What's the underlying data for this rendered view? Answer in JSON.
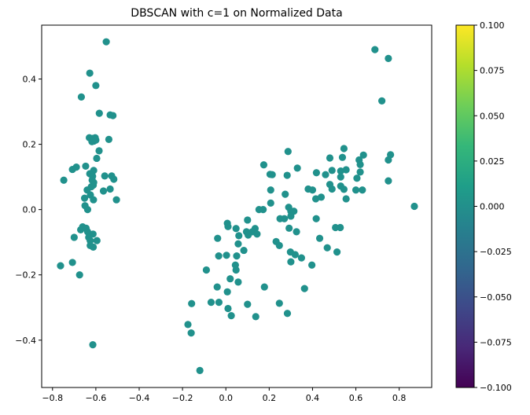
{
  "chart_data": {
    "type": "scatter",
    "title": "DBSCAN with c=1 on Normalized Data",
    "xlabel": "",
    "ylabel": "",
    "xlim": [
      -0.85,
      0.95
    ],
    "ylim": [
      -0.545,
      0.565
    ],
    "xticks": [
      -0.8,
      -0.6,
      -0.4,
      -0.2,
      0.0,
      0.2,
      0.4,
      0.6,
      0.8
    ],
    "yticks": [
      -0.4,
      -0.2,
      0.0,
      0.2,
      0.4
    ],
    "xtick_labels": [
      "−0.8",
      "−0.6",
      "−0.4",
      "−0.2",
      "0.0",
      "0.2",
      "0.4",
      "0.6",
      "0.8"
    ],
    "ytick_labels": [
      "−0.4",
      "−0.2",
      "0.0",
      "0.2",
      "0.4"
    ],
    "grid": false,
    "point_color": "#21918c",
    "colorbar": {
      "min": -0.1,
      "max": 0.1,
      "ticks": [
        -0.1,
        -0.075,
        -0.05,
        -0.025,
        0.0,
        0.025,
        0.05,
        0.075,
        0.1
      ],
      "tick_labels": [
        "−0.100",
        "−0.075",
        "−0.050",
        "−0.025",
        "0.000",
        "0.025",
        "0.050",
        "0.075",
        "0.100"
      ],
      "colormap": "viridis",
      "stops": [
        "#440154",
        "#482878",
        "#3e4989",
        "#31688e",
        "#26828e",
        "#1f9e89",
        "#35b779",
        "#6ece58",
        "#b5de2b",
        "#fde725"
      ]
    },
    "series": [
      {
        "points": [
          [
            -0.552,
            0.514
          ],
          [
            -0.628,
            0.418
          ],
          [
            -0.6,
            0.38
          ],
          [
            -0.667,
            0.345
          ],
          [
            -0.584,
            0.295
          ],
          [
            -0.534,
            0.29
          ],
          [
            -0.521,
            0.288
          ],
          [
            -0.63,
            0.22
          ],
          [
            -0.615,
            0.218
          ],
          [
            -0.603,
            0.22
          ],
          [
            -0.618,
            0.208
          ],
          [
            -0.54,
            0.215
          ],
          [
            -0.609,
            0.21
          ],
          [
            -0.6,
            0.213
          ],
          [
            -0.585,
            0.18
          ],
          [
            -0.596,
            0.157
          ],
          [
            -0.647,
            0.133
          ],
          [
            -0.61,
            0.12
          ],
          [
            -0.708,
            0.123
          ],
          [
            -0.69,
            0.13
          ],
          [
            -0.628,
            0.11
          ],
          [
            -0.615,
            0.102
          ],
          [
            -0.559,
            0.103
          ],
          [
            -0.527,
            0.103
          ],
          [
            -0.617,
            0.09
          ],
          [
            -0.748,
            0.09
          ],
          [
            -0.517,
            0.093
          ],
          [
            -0.61,
            0.083
          ],
          [
            -0.612,
            0.075
          ],
          [
            -0.621,
            0.07
          ],
          [
            -0.565,
            0.057
          ],
          [
            -0.534,
            0.063
          ],
          [
            -0.64,
            0.06
          ],
          [
            -0.625,
            0.045
          ],
          [
            -0.652,
            0.035
          ],
          [
            -0.611,
            0.03
          ],
          [
            -0.505,
            0.03
          ],
          [
            -0.65,
            0.012
          ],
          [
            -0.638,
            0.0
          ],
          [
            -0.661,
            -0.053
          ],
          [
            -0.67,
            -0.062
          ],
          [
            -0.645,
            -0.057
          ],
          [
            -0.638,
            -0.068
          ],
          [
            -0.633,
            -0.085
          ],
          [
            -0.613,
            -0.075
          ],
          [
            -0.7,
            -0.085
          ],
          [
            -0.626,
            -0.095
          ],
          [
            -0.595,
            -0.095
          ],
          [
            -0.626,
            -0.11
          ],
          [
            -0.612,
            -0.115
          ],
          [
            -0.708,
            -0.162
          ],
          [
            -0.763,
            -0.172
          ],
          [
            -0.675,
            -0.2
          ],
          [
            -0.614,
            -0.414
          ]
        ]
      },
      {
        "points": [
          [
            0.688,
            0.49
          ],
          [
            0.75,
            0.463
          ],
          [
            0.72,
            0.333
          ],
          [
            0.545,
            0.187
          ],
          [
            0.48,
            0.158
          ],
          [
            0.538,
            0.16
          ],
          [
            0.635,
            0.167
          ],
          [
            0.76,
            0.168
          ],
          [
            0.287,
            0.178
          ],
          [
            0.615,
            0.152
          ],
          [
            0.62,
            0.138
          ],
          [
            0.75,
            0.152
          ],
          [
            0.555,
            0.122
          ],
          [
            0.53,
            0.118
          ],
          [
            0.49,
            0.12
          ],
          [
            0.418,
            0.113
          ],
          [
            0.33,
            0.127
          ],
          [
            0.175,
            0.137
          ],
          [
            0.204,
            0.108
          ],
          [
            0.214,
            0.107
          ],
          [
            0.283,
            0.105
          ],
          [
            0.62,
            0.115
          ],
          [
            0.46,
            0.107
          ],
          [
            0.605,
            0.096
          ],
          [
            0.53,
            0.1
          ],
          [
            0.75,
            0.088
          ],
          [
            0.48,
            0.077
          ],
          [
            0.49,
            0.063
          ],
          [
            0.53,
            0.072
          ],
          [
            0.545,
            0.062
          ],
          [
            0.6,
            0.06
          ],
          [
            0.38,
            0.063
          ],
          [
            0.63,
            0.06
          ],
          [
            0.207,
            0.06
          ],
          [
            0.4,
            0.06
          ],
          [
            0.274,
            0.047
          ],
          [
            0.415,
            0.033
          ],
          [
            0.44,
            0.038
          ],
          [
            0.555,
            0.033
          ],
          [
            0.207,
            0.02
          ],
          [
            0.87,
            0.01
          ],
          [
            0.153,
            0.0
          ],
          [
            0.172,
            0.0
          ],
          [
            0.29,
            0.007
          ],
          [
            0.3,
            -0.005
          ],
          [
            0.314,
            -0.005
          ],
          [
            0.3,
            -0.02
          ],
          [
            0.25,
            -0.028
          ],
          [
            0.27,
            -0.028
          ],
          [
            0.417,
            -0.028
          ],
          [
            0.1,
            -0.032
          ],
          [
            0.007,
            -0.042
          ],
          [
            0.01,
            -0.052
          ],
          [
            0.047,
            -0.058
          ],
          [
            0.135,
            -0.058
          ],
          [
            0.292,
            -0.057
          ],
          [
            0.326,
            -0.068
          ],
          [
            0.506,
            -0.055
          ],
          [
            0.528,
            -0.055
          ],
          [
            0.095,
            -0.068
          ],
          [
            0.122,
            -0.068
          ],
          [
            0.06,
            -0.08
          ],
          [
            0.103,
            -0.078
          ],
          [
            0.144,
            -0.075
          ],
          [
            -0.038,
            -0.088
          ],
          [
            0.433,
            -0.088
          ],
          [
            0.232,
            -0.098
          ],
          [
            0.057,
            -0.105
          ],
          [
            0.247,
            -0.11
          ],
          [
            0.468,
            -0.117
          ],
          [
            0.083,
            -0.125
          ],
          [
            0.513,
            -0.13
          ],
          [
            0.298,
            -0.13
          ],
          [
            0.32,
            -0.138
          ],
          [
            0.349,
            -0.148
          ],
          [
            0.003,
            -0.14
          ],
          [
            -0.033,
            -0.142
          ],
          [
            0.05,
            -0.142
          ],
          [
            0.3,
            -0.16
          ],
          [
            0.397,
            -0.17
          ],
          [
            0.044,
            -0.17
          ],
          [
            -0.09,
            -0.185
          ],
          [
            0.047,
            -0.185
          ],
          [
            0.02,
            -0.212
          ],
          [
            0.057,
            -0.222
          ],
          [
            0.178,
            -0.237
          ],
          [
            -0.04,
            -0.237
          ],
          [
            0.363,
            -0.242
          ],
          [
            0.007,
            -0.252
          ],
          [
            -0.158,
            -0.288
          ],
          [
            -0.068,
            -0.284
          ],
          [
            -0.032,
            -0.284
          ],
          [
            0.247,
            -0.287
          ],
          [
            0.1,
            -0.29
          ],
          [
            0.01,
            -0.303
          ],
          [
            0.284,
            -0.318
          ],
          [
            0.138,
            -0.328
          ],
          [
            0.025,
            -0.325
          ],
          [
            -0.175,
            -0.352
          ],
          [
            -0.16,
            -0.378
          ],
          [
            -0.12,
            -0.493
          ]
        ]
      }
    ]
  }
}
